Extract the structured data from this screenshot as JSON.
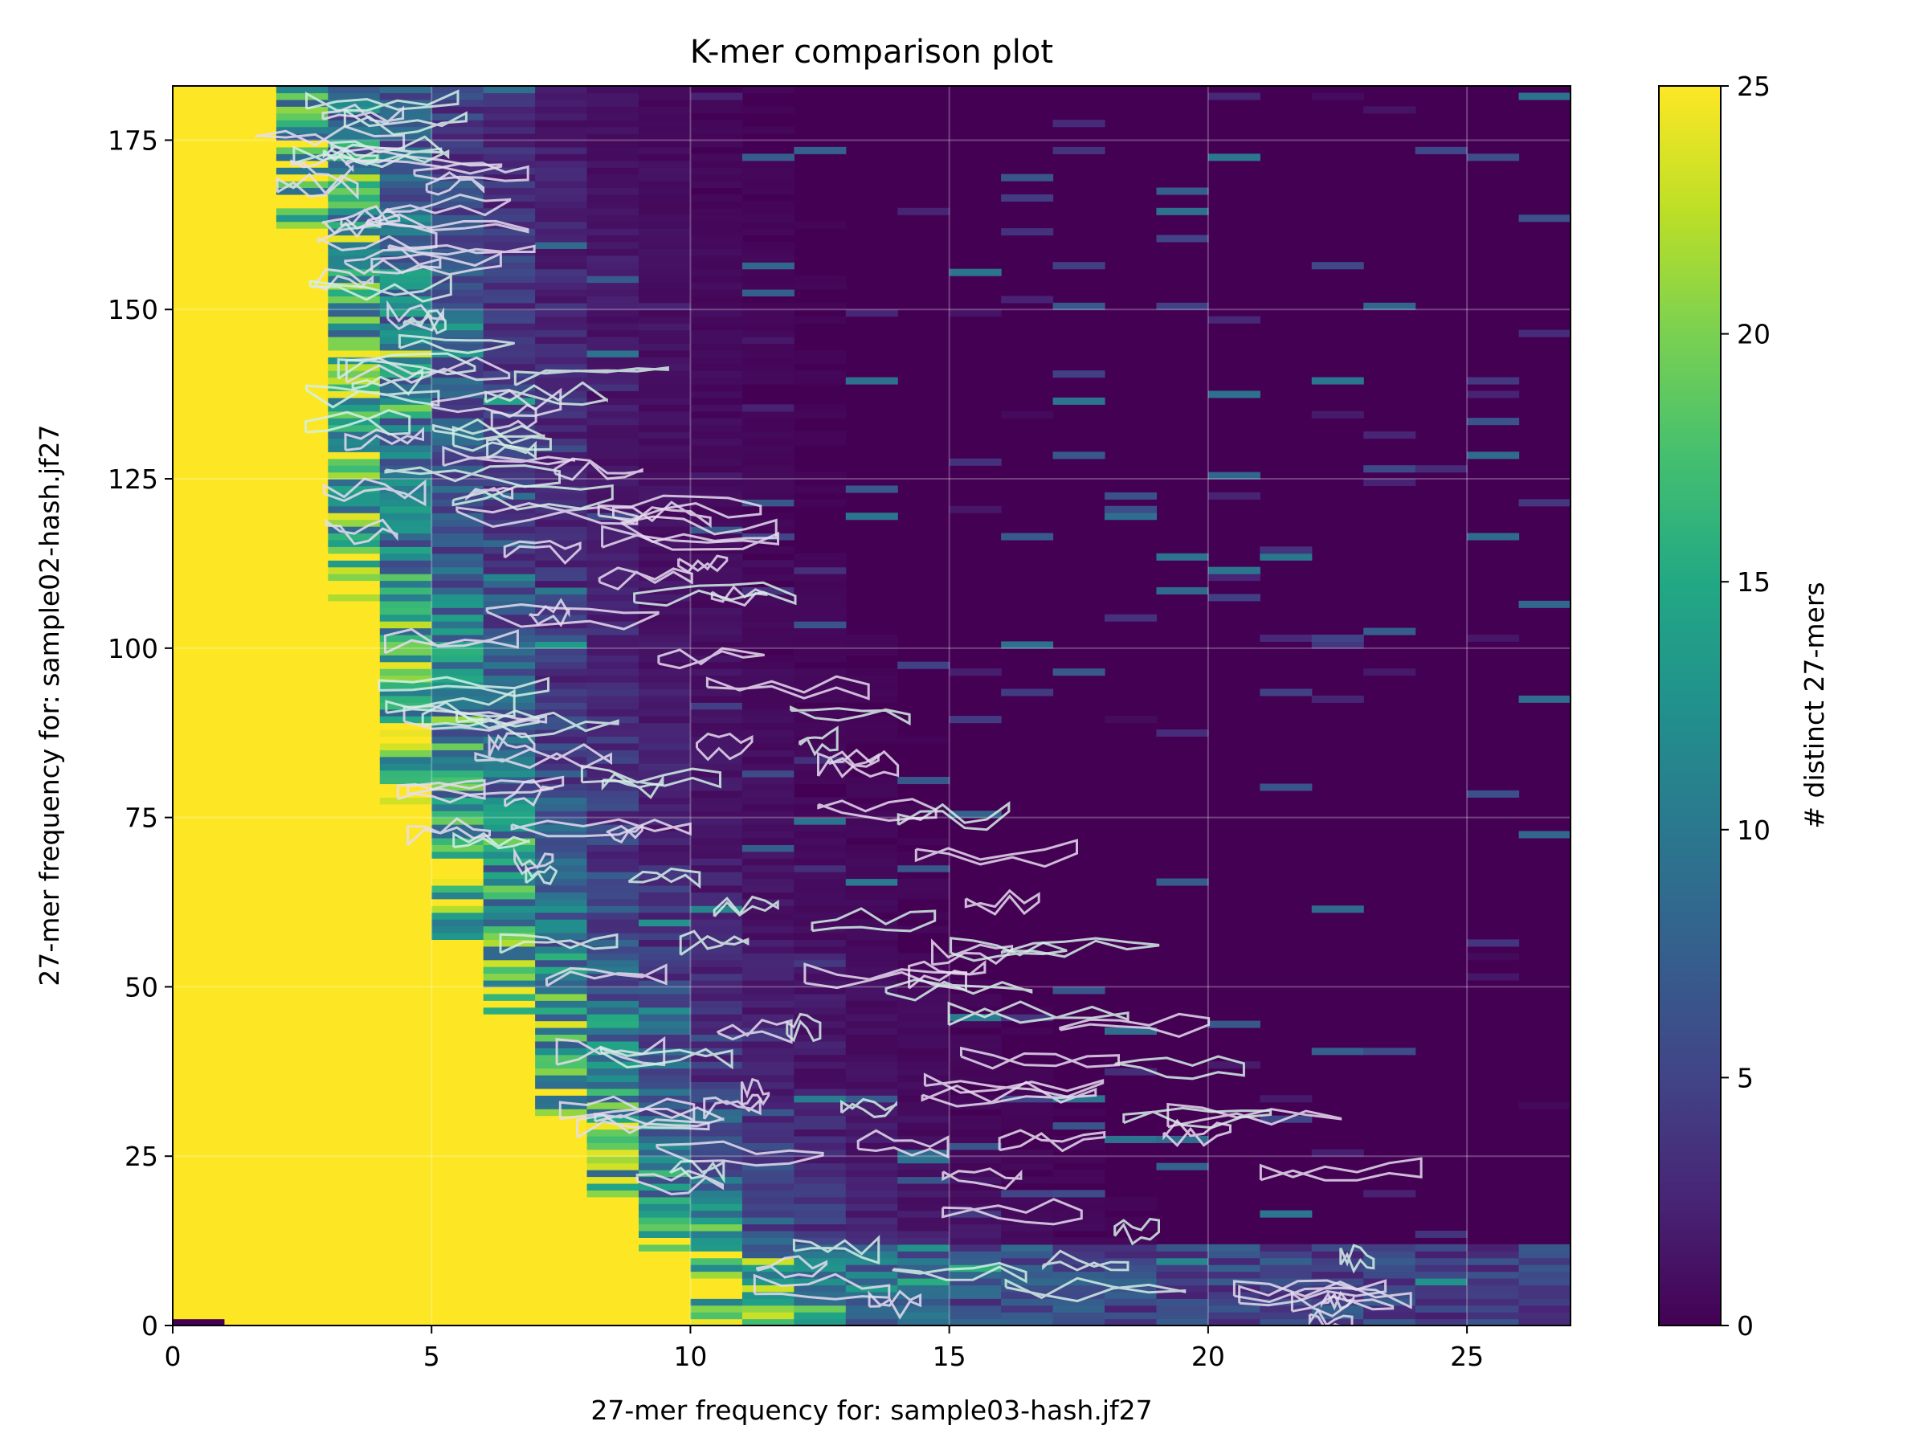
{
  "chart_data": {
    "type": "heatmap",
    "title": "K-mer comparison plot",
    "xlabel": "27-mer frequency for: sample03-hash.jf27",
    "ylabel": "27-mer frequency for: sample02-hash.jf27",
    "xlim": [
      0,
      27
    ],
    "ylim": [
      0,
      183
    ],
    "x_ticks": [
      0,
      5,
      10,
      15,
      20,
      25
    ],
    "y_ticks": [
      0,
      25,
      50,
      75,
      100,
      125,
      150,
      175
    ],
    "grid": true,
    "overlay": "contour",
    "colorbar": {
      "label": "# distinct 27-mers",
      "vmin": 0,
      "vmax": 25,
      "ticks": [
        0,
        5,
        10,
        15,
        20,
        25
      ],
      "colormap": "viridis"
    },
    "saturated_boundary": {
      "description_x": "x below which counts saturate at 25 for each y",
      "y": [
        0,
        5,
        10,
        15,
        20,
        25,
        30,
        35,
        40,
        45,
        50,
        55,
        60,
        65,
        70,
        75,
        80,
        85,
        90,
        95,
        100,
        105,
        110,
        115,
        120,
        125,
        130,
        135,
        140,
        145,
        150,
        155,
        160,
        165,
        170,
        175,
        180
      ],
      "x": [
        10,
        10,
        10,
        9,
        8.5,
        8,
        8,
        7,
        7,
        7,
        6.5,
        6,
        5.5,
        5.5,
        5,
        5,
        4.5,
        4.5,
        4,
        4,
        4,
        4,
        3.5,
        3,
        3,
        3,
        3,
        3,
        3,
        3,
        3,
        3,
        3,
        2.5,
        2.5,
        2,
        2
      ]
    }
  }
}
